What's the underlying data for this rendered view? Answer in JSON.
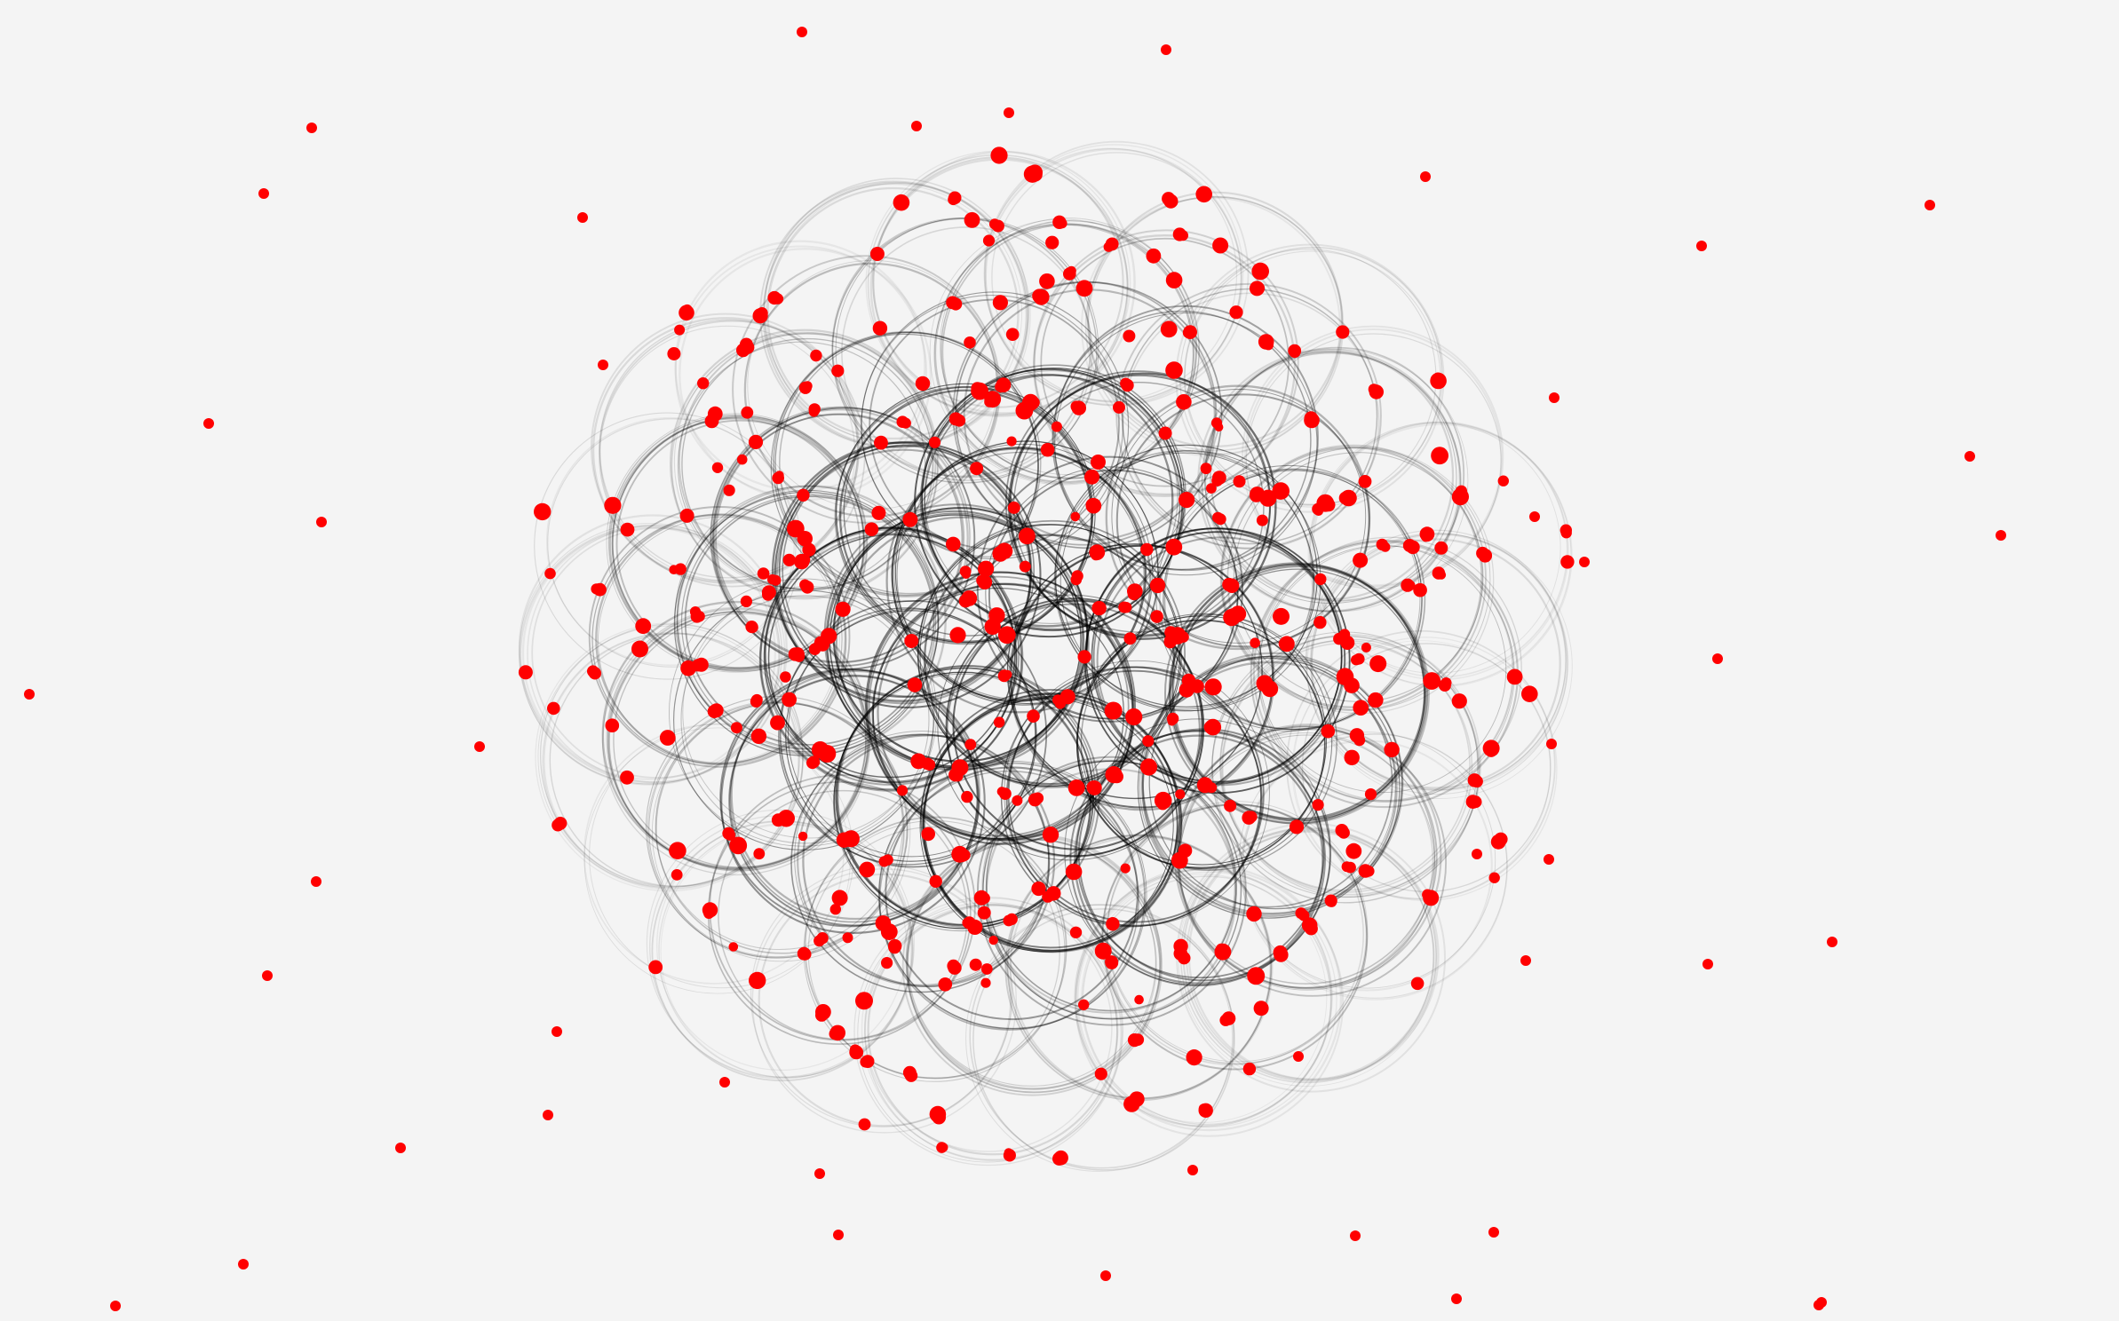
{
  "canvas": {
    "background": "#f4f4f4",
    "ring_color": "#000000",
    "particle_color": "#ff0000"
  },
  "artwork": {
    "description_name": "generative-ring-particle-sketch",
    "ring_layers": 3,
    "particle_clusters": 1
  }
}
